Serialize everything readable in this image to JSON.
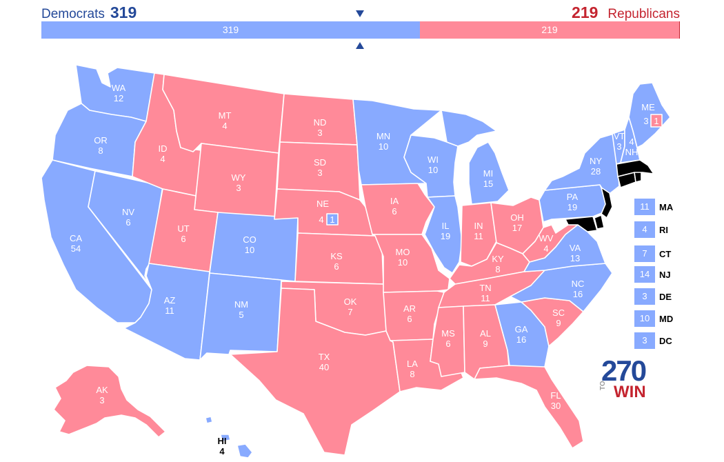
{
  "header": {
    "dem_name": "Democrats",
    "dem_total": "319",
    "rep_total": "219",
    "rep_name": "Republicans",
    "bar_dem": "319",
    "bar_rep": "219",
    "dem_share": 0.5929
  },
  "colors": {
    "dem": "#88aaff",
    "rep": "#ff8a99",
    "dem_text": "#244999",
    "rep_text": "#c4242f"
  },
  "states": {
    "WA": {
      "abbr": "WA",
      "ev": "12",
      "party": "dem"
    },
    "OR": {
      "abbr": "OR",
      "ev": "8",
      "party": "dem"
    },
    "CA": {
      "abbr": "CA",
      "ev": "54",
      "party": "dem"
    },
    "NV": {
      "abbr": "NV",
      "ev": "6",
      "party": "dem"
    },
    "ID": {
      "abbr": "ID",
      "ev": "4",
      "party": "rep"
    },
    "MT": {
      "abbr": "MT",
      "ev": "4",
      "party": "rep"
    },
    "WY": {
      "abbr": "WY",
      "ev": "3",
      "party": "rep"
    },
    "UT": {
      "abbr": "UT",
      "ev": "6",
      "party": "rep"
    },
    "AZ": {
      "abbr": "AZ",
      "ev": "11",
      "party": "dem"
    },
    "CO": {
      "abbr": "CO",
      "ev": "10",
      "party": "dem"
    },
    "NM": {
      "abbr": "NM",
      "ev": "5",
      "party": "dem"
    },
    "ND": {
      "abbr": "ND",
      "ev": "3",
      "party": "rep"
    },
    "SD": {
      "abbr": "SD",
      "ev": "3",
      "party": "rep"
    },
    "NE": {
      "abbr": "NE",
      "ev": "4",
      "party": "rep"
    },
    "NE_district": {
      "abbr": "",
      "ev": "1",
      "party": "dem"
    },
    "KS": {
      "abbr": "KS",
      "ev": "6",
      "party": "rep"
    },
    "OK": {
      "abbr": "OK",
      "ev": "7",
      "party": "rep"
    },
    "TX": {
      "abbr": "TX",
      "ev": "40",
      "party": "rep"
    },
    "MN": {
      "abbr": "MN",
      "ev": "10",
      "party": "dem"
    },
    "IA": {
      "abbr": "IA",
      "ev": "6",
      "party": "rep"
    },
    "MO": {
      "abbr": "MO",
      "ev": "10",
      "party": "rep"
    },
    "AR": {
      "abbr": "AR",
      "ev": "6",
      "party": "rep"
    },
    "LA": {
      "abbr": "LA",
      "ev": "8",
      "party": "rep"
    },
    "WI": {
      "abbr": "WI",
      "ev": "10",
      "party": "dem"
    },
    "IL": {
      "abbr": "IL",
      "ev": "19",
      "party": "dem"
    },
    "MI": {
      "abbr": "MI",
      "ev": "15",
      "party": "dem"
    },
    "IN": {
      "abbr": "IN",
      "ev": "11",
      "party": "rep"
    },
    "OH": {
      "abbr": "OH",
      "ev": "17",
      "party": "rep"
    },
    "KY": {
      "abbr": "KY",
      "ev": "8",
      "party": "rep"
    },
    "TN": {
      "abbr": "TN",
      "ev": "11",
      "party": "rep"
    },
    "MS": {
      "abbr": "MS",
      "ev": "6",
      "party": "rep"
    },
    "AL": {
      "abbr": "AL",
      "ev": "9",
      "party": "rep"
    },
    "GA": {
      "abbr": "GA",
      "ev": "16",
      "party": "dem"
    },
    "FL": {
      "abbr": "FL",
      "ev": "30",
      "party": "rep"
    },
    "SC": {
      "abbr": "SC",
      "ev": "9",
      "party": "rep"
    },
    "NC": {
      "abbr": "NC",
      "ev": "16",
      "party": "dem"
    },
    "VA": {
      "abbr": "VA",
      "ev": "13",
      "party": "dem"
    },
    "WV": {
      "abbr": "WV",
      "ev": "4",
      "party": "rep"
    },
    "PA": {
      "abbr": "PA",
      "ev": "19",
      "party": "dem"
    },
    "NY": {
      "abbr": "NY",
      "ev": "28",
      "party": "dem"
    },
    "VT": {
      "abbr": "VT",
      "ev": "3",
      "party": "dem"
    },
    "NH": {
      "abbr": "NH",
      "ev": "4",
      "party": "dem"
    },
    "ME": {
      "abbr": "ME",
      "ev": "3",
      "party": "dem"
    },
    "ME_district": {
      "abbr": "",
      "ev": "1",
      "party": "rep"
    },
    "AK": {
      "abbr": "AK",
      "ev": "3",
      "party": "rep"
    },
    "HI": {
      "abbr": "HI",
      "ev": "4",
      "party": "dem"
    }
  },
  "small_states": [
    {
      "abbr": "MA",
      "ev": "11",
      "party": "dem"
    },
    {
      "abbr": "RI",
      "ev": "4",
      "party": "dem"
    },
    {
      "abbr": "CT",
      "ev": "7",
      "party": "dem"
    },
    {
      "abbr": "NJ",
      "ev": "14",
      "party": "dem"
    },
    {
      "abbr": "DE",
      "ev": "3",
      "party": "dem"
    },
    {
      "abbr": "MD",
      "ev": "10",
      "party": "dem"
    },
    {
      "abbr": "DC",
      "ev": "3",
      "party": "dem"
    }
  ],
  "logo": {
    "number": "270",
    "to": "TO",
    "win": "WIN"
  }
}
